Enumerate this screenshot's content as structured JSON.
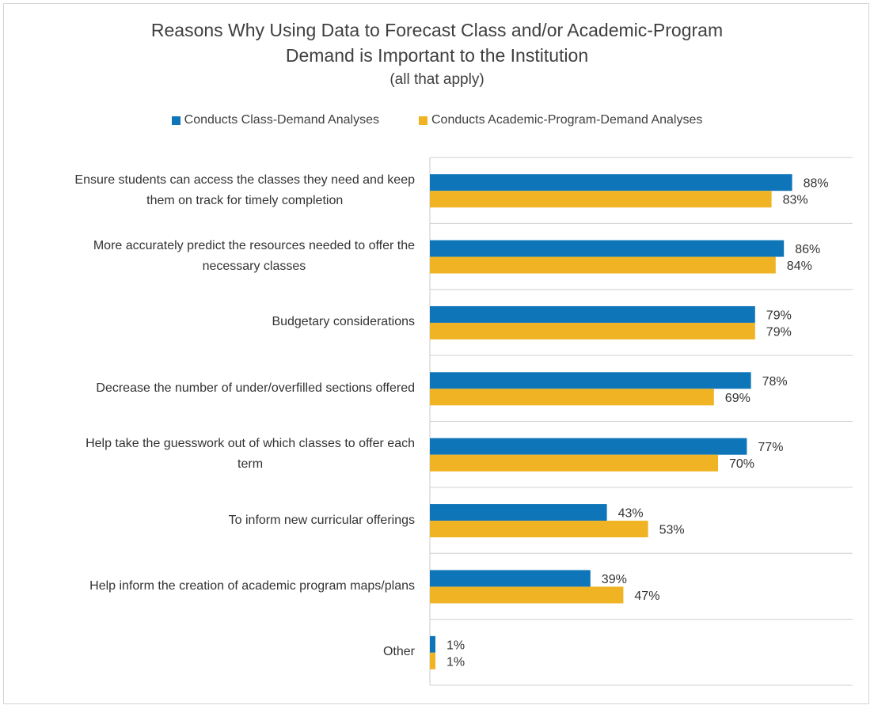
{
  "chart_data": {
    "type": "bar",
    "orientation": "horizontal",
    "title_lines": [
      "Reasons Why Using Data to Forecast Class and/or Academic-Program",
      "Demand is Important to the Institution"
    ],
    "subtitle": "(all that apply)",
    "categories": [
      [
        "Ensure students can access the classes they need and keep",
        "them on track for timely completion"
      ],
      [
        "More accurately predict the resources needed to offer the",
        "necessary classes"
      ],
      [
        "Budgetary considerations"
      ],
      [
        "Decrease the number of under/overfilled sections offered"
      ],
      [
        "Help take the guesswork out of which classes to offer each",
        "term"
      ],
      [
        "To inform new curricular offerings"
      ],
      [
        "Help inform the creation of academic program maps/plans"
      ],
      [
        "Other"
      ]
    ],
    "series": [
      {
        "name": "Conducts Class-Demand Analyses",
        "color": "#0e75b8",
        "values": [
          88,
          86,
          79,
          78,
          77,
          43,
          39,
          1
        ],
        "labels": [
          "88%",
          "86%",
          "79%",
          "78%",
          "77%",
          "43%",
          "39%",
          "1%"
        ]
      },
      {
        "name": "Conducts Academic-Program-Demand Analyses",
        "color": "#f0b323",
        "values": [
          83,
          84,
          79,
          69,
          70,
          53,
          47,
          1
        ],
        "labels": [
          "83%",
          "84%",
          "79%",
          "69%",
          "70%",
          "53%",
          "47%",
          "1%"
        ]
      }
    ],
    "xlim": [
      0,
      100
    ],
    "legend": "top",
    "grid": "horizontal separators"
  }
}
